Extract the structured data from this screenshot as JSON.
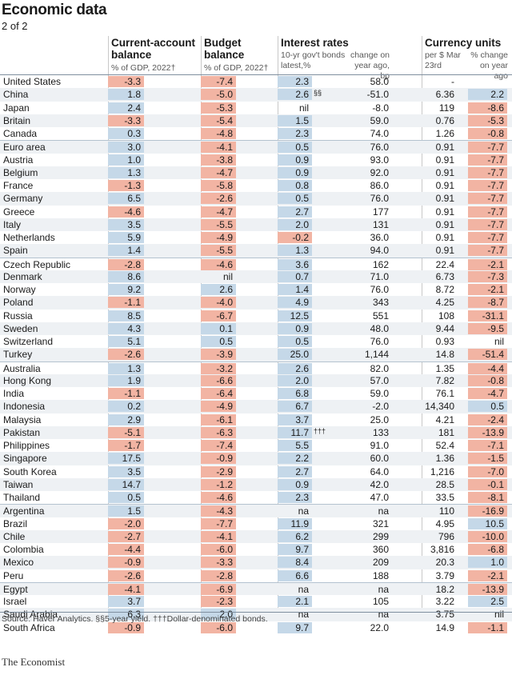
{
  "title": "Economic data",
  "subtitle": "2 of 2",
  "headers": {
    "current_account": "Current-account balance",
    "current_account_sub": "% of GDP, 2022†",
    "budget": "Budget balance",
    "budget_sub": "% of GDP, 2022†",
    "interest": "Interest rates",
    "interest_sub1": "10-yr gov't bonds latest,%",
    "interest_sub2": "change on year ago, bp",
    "currency": "Currency units",
    "currency_sub1": "per $ Mar 23rd",
    "currency_sub2": "% change on year ago"
  },
  "colors": {
    "positive": "#c5d8e8",
    "negative": "#f2b4a3",
    "divider": "#b4c2cf"
  },
  "rows": [
    {
      "name": "United States",
      "ca": "-3.3",
      "bb": "-7.4",
      "ir": "2.3",
      "ic": "58.0",
      "cu": "-",
      "cc": "",
      "grp": true
    },
    {
      "name": "China",
      "ca": "1.8",
      "bb": "-5.0",
      "ir": "2.6",
      "note": "§§",
      "ic": "-51.0",
      "cu": "6.36",
      "cc": "2.2"
    },
    {
      "name": "Japan",
      "ca": "2.4",
      "bb": "-5.3",
      "ir": "nil",
      "ic": "-8.0",
      "cu": "119",
      "cc": "-8.6"
    },
    {
      "name": "Britain",
      "ca": "-3.3",
      "bb": "-5.4",
      "ir": "1.5",
      "ic": "59.0",
      "cu": "0.76",
      "cc": "-5.3"
    },
    {
      "name": "Canada",
      "ca": "0.3",
      "bb": "-4.8",
      "ir": "2.3",
      "ic": "74.0",
      "cu": "1.26",
      "cc": "-0.8"
    },
    {
      "name": "Euro area",
      "ca": "3.0",
      "bb": "-4.1",
      "ir": "0.5",
      "ic": "76.0",
      "cu": "0.91",
      "cc": "-7.7",
      "grp": true
    },
    {
      "name": "Austria",
      "ca": "1.0",
      "bb": "-3.8",
      "ir": "0.9",
      "ic": "93.0",
      "cu": "0.91",
      "cc": "-7.7"
    },
    {
      "name": "Belgium",
      "ca": "1.3",
      "bb": "-4.7",
      "ir": "0.9",
      "ic": "92.0",
      "cu": "0.91",
      "cc": "-7.7"
    },
    {
      "name": "France",
      "ca": "-1.3",
      "bb": "-5.8",
      "ir": "0.8",
      "ic": "86.0",
      "cu": "0.91",
      "cc": "-7.7"
    },
    {
      "name": "Germany",
      "ca": "6.5",
      "bb": "-2.6",
      "ir": "0.5",
      "ic": "76.0",
      "cu": "0.91",
      "cc": "-7.7"
    },
    {
      "name": "Greece",
      "ca": "-4.6",
      "bb": "-4.7",
      "ir": "2.7",
      "ic": "177",
      "cu": "0.91",
      "cc": "-7.7"
    },
    {
      "name": "Italy",
      "ca": "3.5",
      "bb": "-5.5",
      "ir": "2.0",
      "ic": "131",
      "cu": "0.91",
      "cc": "-7.7"
    },
    {
      "name": "Netherlands",
      "ca": "5.9",
      "bb": "-4.9",
      "ir": "-0.2",
      "ic": "36.0",
      "cu": "0.91",
      "cc": "-7.7"
    },
    {
      "name": "Spain",
      "ca": "1.4",
      "bb": "-5.5",
      "ir": "1.3",
      "ic": "94.0",
      "cu": "0.91",
      "cc": "-7.7"
    },
    {
      "name": "Czech Republic",
      "ca": "-2.8",
      "bb": "-4.6",
      "ir": "3.6",
      "ic": "162",
      "cu": "22.4",
      "cc": "-2.1",
      "grp": true
    },
    {
      "name": "Denmark",
      "ca": "8.6",
      "bb": "nil",
      "ir": "0.7",
      "ic": "71.0",
      "cu": "6.73",
      "cc": "-7.3"
    },
    {
      "name": "Norway",
      "ca": "9.2",
      "bb": "2.6",
      "ir": "1.4",
      "ic": "76.0",
      "cu": "8.72",
      "cc": "-2.1"
    },
    {
      "name": "Poland",
      "ca": "-1.1",
      "bb": "-4.0",
      "ir": "4.9",
      "ic": "343",
      "cu": "4.25",
      "cc": "-8.7"
    },
    {
      "name": "Russia",
      "ca": "8.5",
      "bb": "-6.7",
      "ir": "12.5",
      "ic": "551",
      "cu": "108",
      "cc": "-31.1"
    },
    {
      "name": "Sweden",
      "ca": "4.3",
      "bb": "0.1",
      "ir": "0.9",
      "ic": "48.0",
      "cu": "9.44",
      "cc": "-9.5"
    },
    {
      "name": "Switzerland",
      "ca": "5.1",
      "bb": "0.5",
      "ir": "0.5",
      "ic": "76.0",
      "cu": "0.93",
      "cc": "nil"
    },
    {
      "name": "Turkey",
      "ca": "-2.6",
      "bb": "-3.9",
      "ir": "25.0",
      "ic": "1,144",
      "cu": "14.8",
      "cc": "-51.4"
    },
    {
      "name": "Australia",
      "ca": "1.3",
      "bb": "-3.2",
      "ir": "2.6",
      "ic": "82.0",
      "cu": "1.35",
      "cc": "-4.4",
      "grp": true
    },
    {
      "name": "Hong Kong",
      "ca": "1.9",
      "bb": "-6.6",
      "ir": "2.0",
      "ic": "57.0",
      "cu": "7.82",
      "cc": "-0.8"
    },
    {
      "name": "India",
      "ca": "-1.1",
      "bb": "-6.4",
      "ir": "6.8",
      "ic": "59.0",
      "cu": "76.1",
      "cc": "-4.7"
    },
    {
      "name": "Indonesia",
      "ca": "0.2",
      "bb": "-4.9",
      "ir": "6.7",
      "ic": "-2.0",
      "cu": "14,340",
      "cc": "0.5"
    },
    {
      "name": "Malaysia",
      "ca": "2.9",
      "bb": "-6.1",
      "ir": "3.7",
      "ic": "25.0",
      "cu": "4.21",
      "cc": "-2.4"
    },
    {
      "name": "Pakistan",
      "ca": "-5.1",
      "bb": "-6.3",
      "ir": "11.7",
      "note": "†††",
      "ic": "133",
      "cu": "181",
      "cc": "-13.9"
    },
    {
      "name": "Philippines",
      "ca": "-1.7",
      "bb": "-7.4",
      "ir": "5.5",
      "ic": "91.0",
      "cu": "52.4",
      "cc": "-7.1"
    },
    {
      "name": "Singapore",
      "ca": "17.5",
      "bb": "-0.9",
      "ir": "2.2",
      "ic": "60.0",
      "cu": "1.36",
      "cc": "-1.5"
    },
    {
      "name": "South Korea",
      "ca": "3.5",
      "bb": "-2.9",
      "ir": "2.7",
      "ic": "64.0",
      "cu": "1,216",
      "cc": "-7.0"
    },
    {
      "name": "Taiwan",
      "ca": "14.7",
      "bb": "-1.2",
      "ir": "0.9",
      "ic": "42.0",
      "cu": "28.5",
      "cc": "-0.1"
    },
    {
      "name": "Thailand",
      "ca": "0.5",
      "bb": "-4.6",
      "ir": "2.3",
      "ic": "47.0",
      "cu": "33.5",
      "cc": "-8.1"
    },
    {
      "name": "Argentina",
      "ca": "1.5",
      "bb": "-4.3",
      "ir": "na",
      "ic": "na",
      "cu": "110",
      "cc": "-16.9",
      "grp": true
    },
    {
      "name": "Brazil",
      "ca": "-2.0",
      "bb": "-7.7",
      "ir": "11.9",
      "ic": "321",
      "cu": "4.95",
      "cc": "10.5"
    },
    {
      "name": "Chile",
      "ca": "-2.7",
      "bb": "-4.1",
      "ir": "6.2",
      "ic": "299",
      "cu": "796",
      "cc": "-10.0"
    },
    {
      "name": "Colombia",
      "ca": "-4.4",
      "bb": "-6.0",
      "ir": "9.7",
      "ic": "360",
      "cu": "3,816",
      "cc": "-6.8"
    },
    {
      "name": "Mexico",
      "ca": "-0.9",
      "bb": "-3.3",
      "ir": "8.4",
      "ic": "209",
      "cu": "20.3",
      "cc": "1.0"
    },
    {
      "name": "Peru",
      "ca": "-2.6",
      "bb": "-2.8",
      "ir": "6.6",
      "ic": "188",
      "cu": "3.79",
      "cc": "-2.1"
    },
    {
      "name": "Egypt",
      "ca": "-4.1",
      "bb": "-6.9",
      "ir": "na",
      "ic": "na",
      "cu": "18.2",
      "cc": "-13.9",
      "grp": true
    },
    {
      "name": "Israel",
      "ca": "3.7",
      "bb": "-2.3",
      "ir": "2.1",
      "ic": "105",
      "cu": "3.22",
      "cc": "2.5"
    },
    {
      "name": "Saudi Arabia",
      "ca": "6.3",
      "bb": "2.0",
      "ir": "na",
      "ic": "na",
      "cu": "3.75",
      "cc": "nil"
    },
    {
      "name": "South Africa",
      "ca": "-0.9",
      "bb": "-6.0",
      "ir": "9.7",
      "ic": "22.0",
      "cu": "14.9",
      "cc": "-1.1"
    }
  ],
  "source": "Source: Haver Analytics. §§5-year yield. †††Dollar-denominated bonds.",
  "logo": "The Economist"
}
